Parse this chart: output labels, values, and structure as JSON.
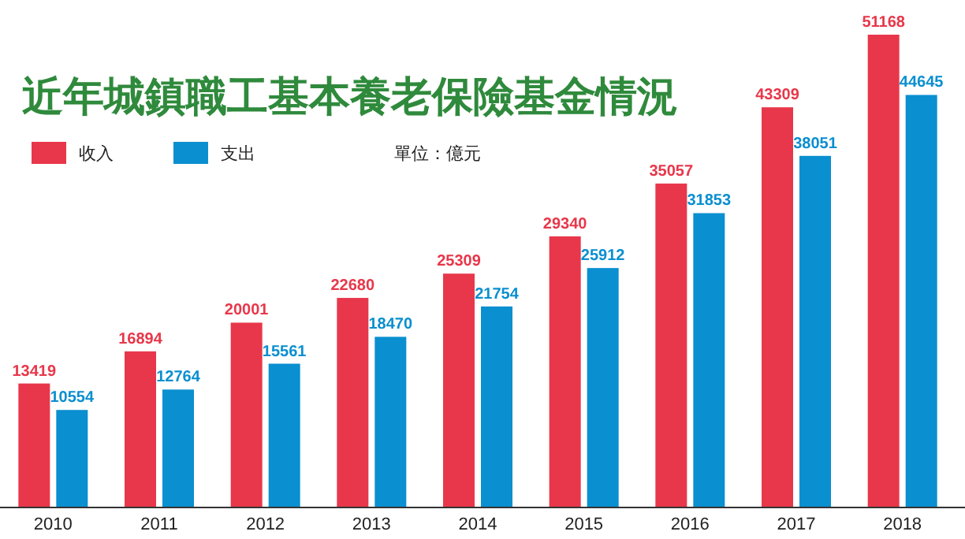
{
  "chart_data": {
    "type": "bar",
    "title": "近年城鎮職工基本養老保險基金情況",
    "categories": [
      "2010",
      "2011",
      "2012",
      "2013",
      "2014",
      "2015",
      "2016",
      "2017",
      "2018"
    ],
    "series": [
      {
        "name": "收入",
        "color": "#e8374a",
        "values": [
          13419,
          16894,
          20001,
          22680,
          25309,
          29340,
          35057,
          43309,
          51168
        ]
      },
      {
        "name": "支出",
        "color": "#0a8fd0",
        "values": [
          10554,
          12764,
          15561,
          18470,
          21754,
          25912,
          31853,
          38051,
          44645
        ]
      }
    ],
    "annotations": [
      "單位：億元"
    ],
    "data_labels": true,
    "legend": "top left"
  }
}
